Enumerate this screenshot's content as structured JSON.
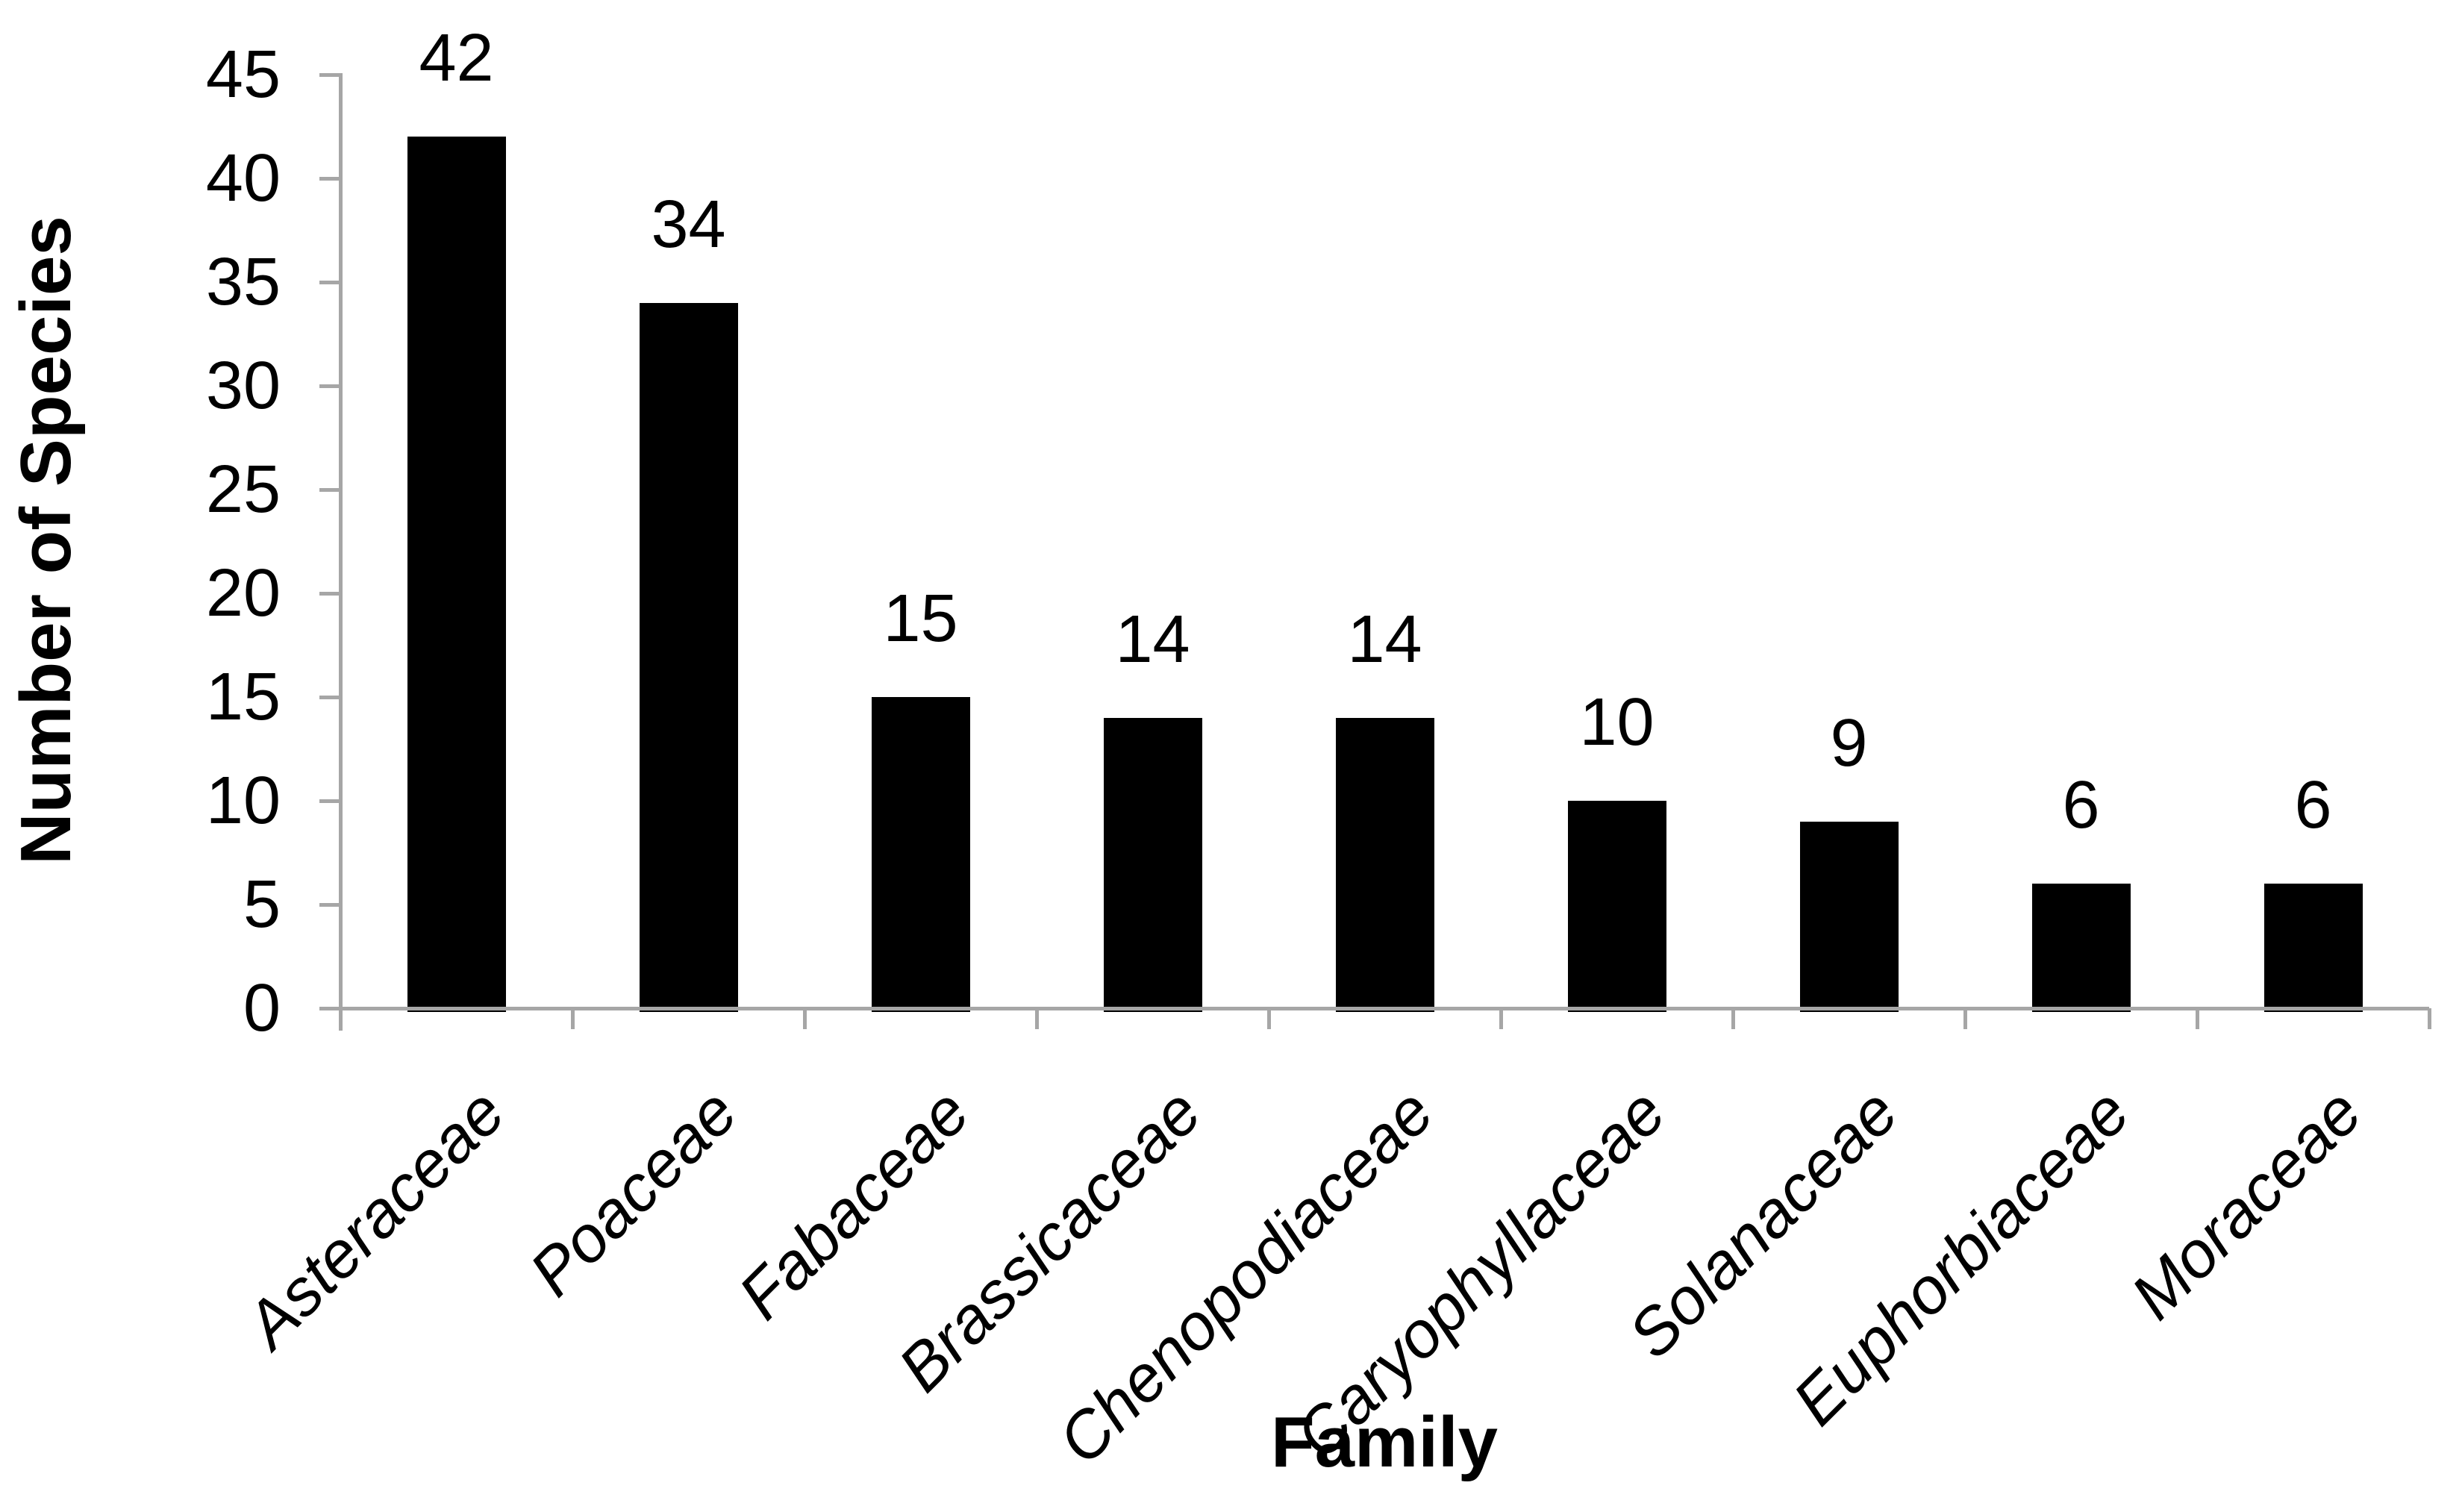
{
  "chart_data": {
    "type": "bar",
    "title": "",
    "xlabel": "Family",
    "ylabel": "Number of Species",
    "categories": [
      "Asteraceae",
      "Poaceae",
      "Fabaceae",
      "Brassicaceae",
      "Chenopodiaceae",
      "Caryophyllaceae",
      "Solanaceae",
      "Euphorbiaceae",
      "Moraceae"
    ],
    "values": [
      42,
      34,
      15,
      14,
      14,
      10,
      9,
      6,
      6
    ],
    "data_labels_shown": true,
    "ylim": [
      0,
      45
    ],
    "y_ticks": [
      0,
      5,
      10,
      15,
      20,
      25,
      30,
      35,
      40,
      45
    ],
    "grid": "off",
    "legend": "none",
    "bar_color": "#000000",
    "axis_color": "#A6A6A6",
    "text_color": "#000000"
  }
}
